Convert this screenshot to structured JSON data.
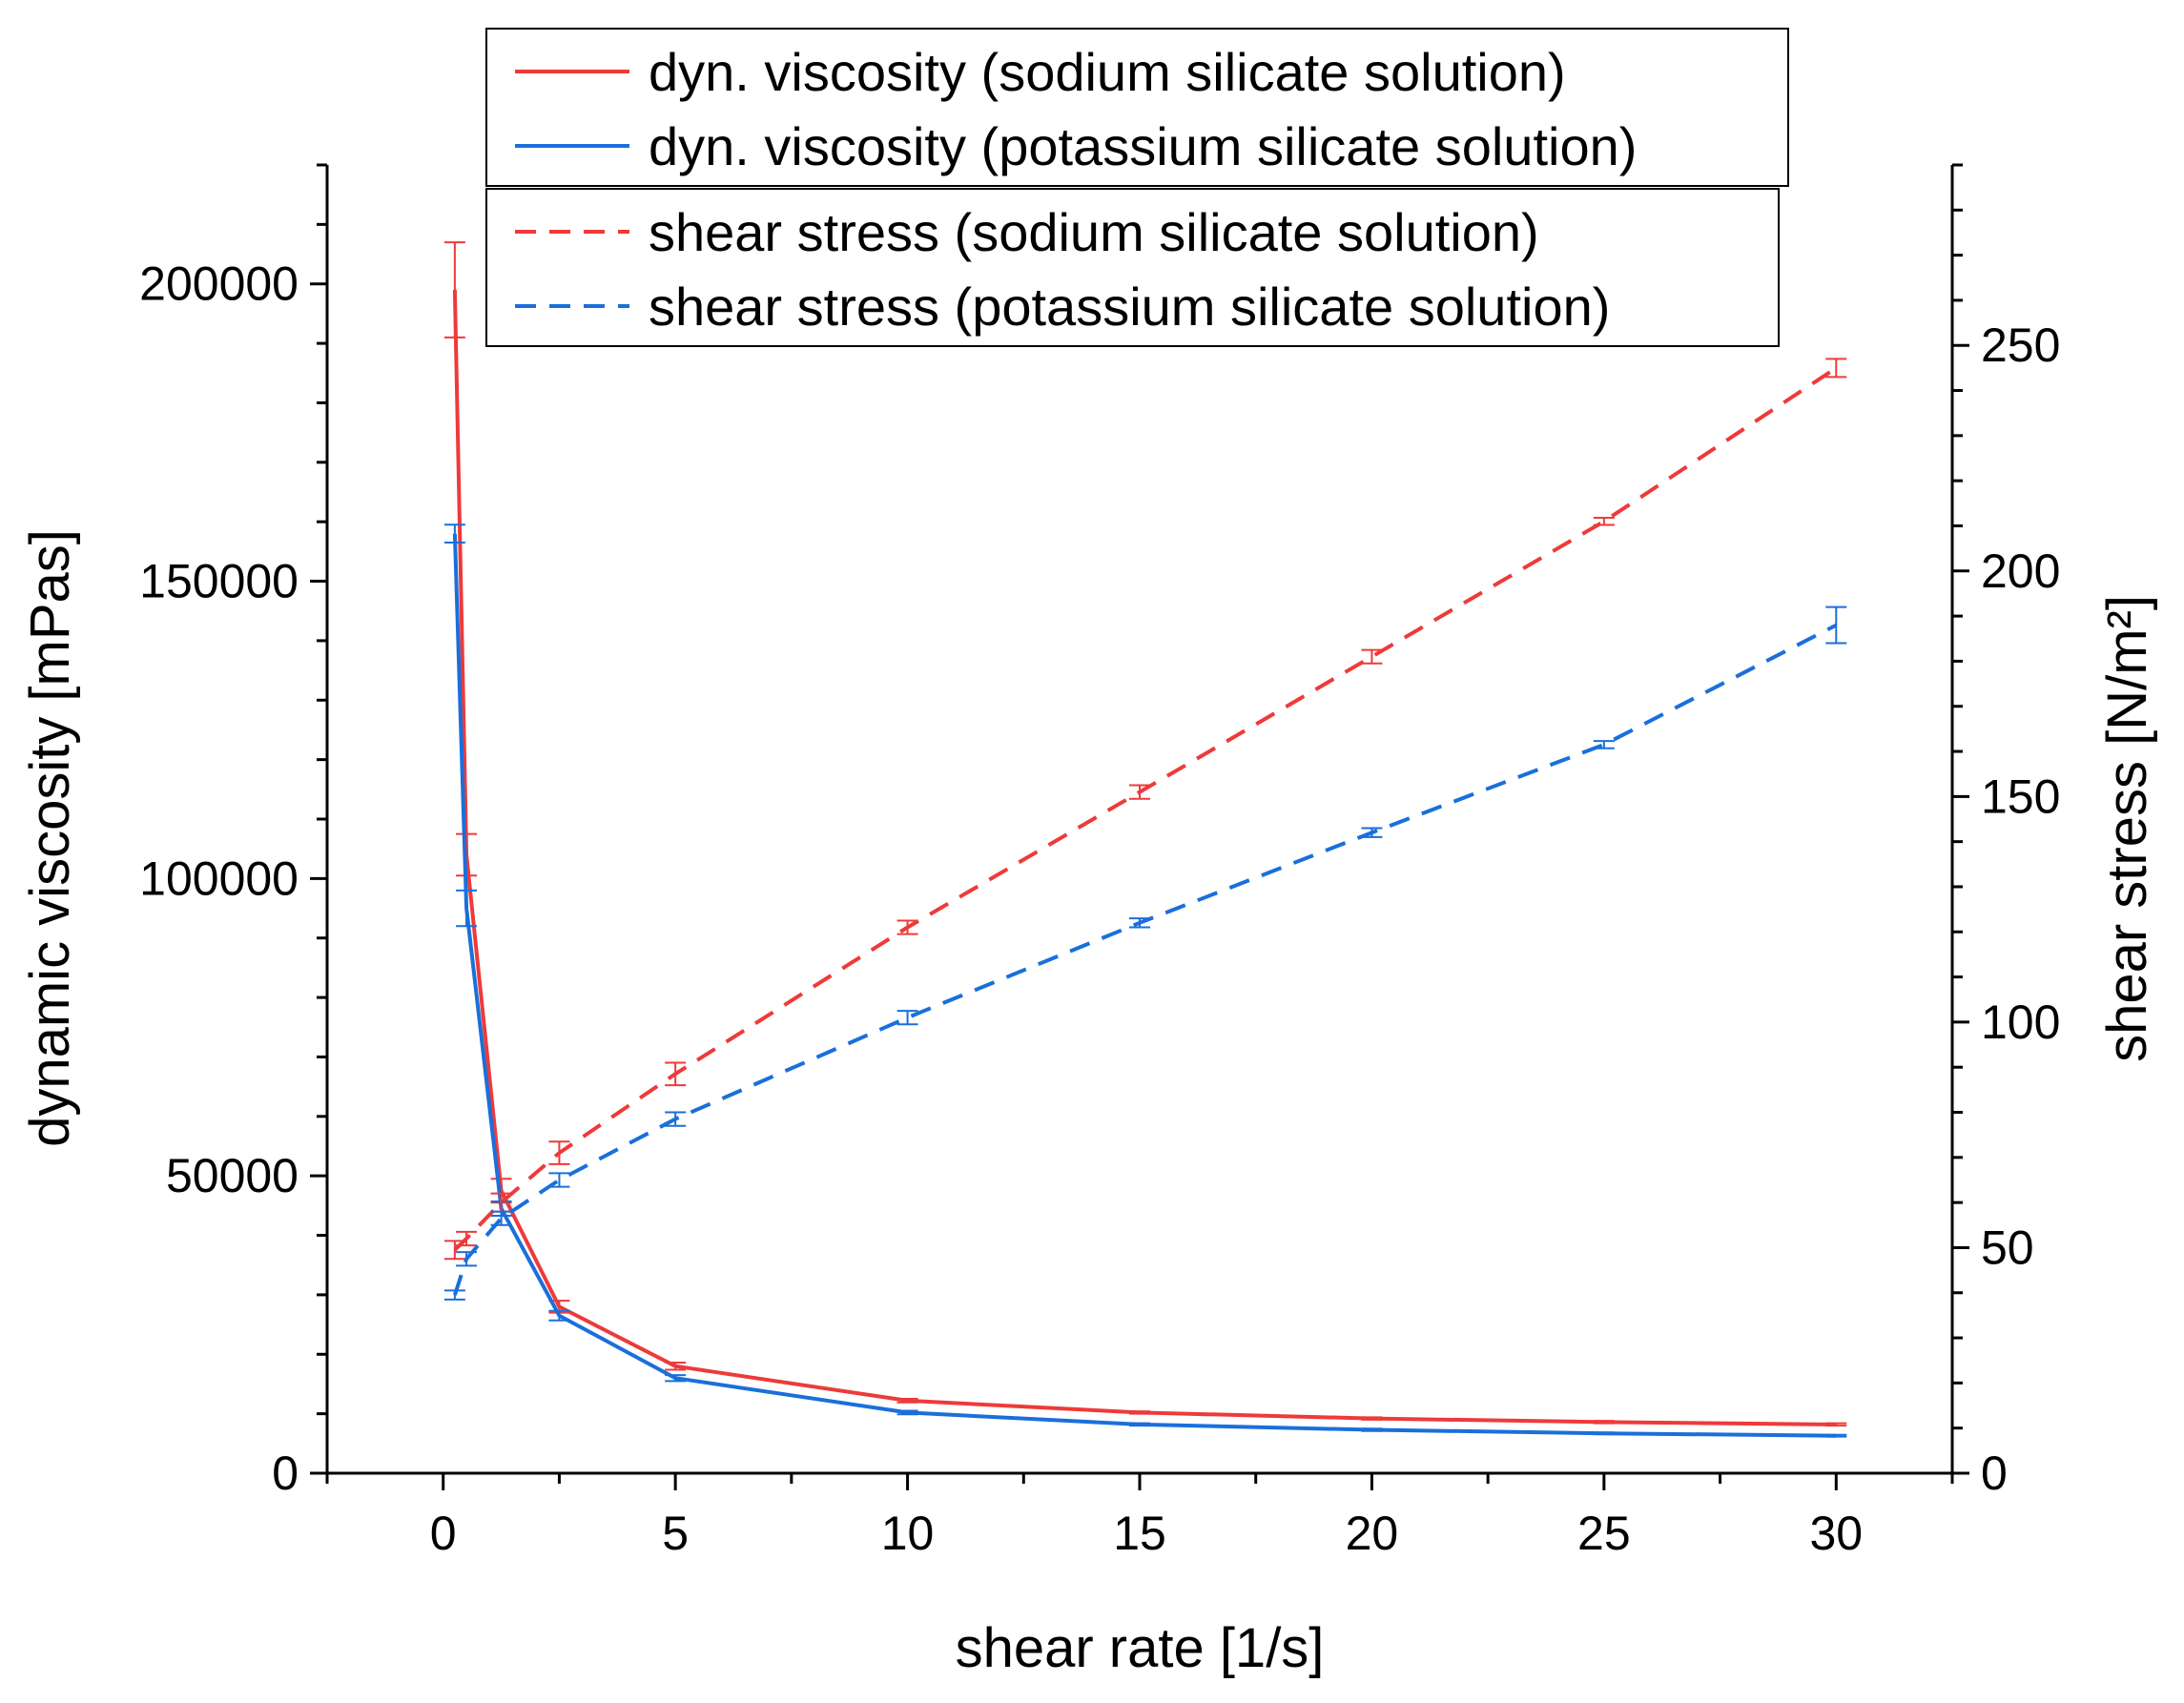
{
  "chart_data": {
    "type": "line",
    "xlabel": "shear rate [1/s]",
    "ylabel_left": "dynamic viscosity [mPas]",
    "ylabel_right": "shear stress [N/m²]",
    "xlim": [
      -2.5,
      32.5
    ],
    "ylim_left": [
      0,
      220000
    ],
    "ylim_right": [
      0,
      290
    ],
    "x_ticks": [
      0,
      5,
      10,
      15,
      20,
      25,
      30
    ],
    "y_left_ticks": [
      0,
      50000,
      100000,
      150000,
      200000
    ],
    "y_right_ticks": [
      0,
      50,
      100,
      150,
      200,
      250
    ],
    "grid": false,
    "legend_position": "top",
    "series": [
      {
        "name": "dyn. viscosity (sodium silicate solution)",
        "axis": "left",
        "style": "solid",
        "color": "#ee3a3a",
        "x": [
          0.25,
          0.5,
          1.25,
          2.5,
          5,
          10,
          15,
          20,
          25,
          30
        ],
        "y": [
          199000,
          104000,
          47500,
          28000,
          18000,
          12200,
          10200,
          9200,
          8600,
          8200
        ],
        "err": [
          8000,
          3500,
          2000,
          1000,
          600,
          300,
          200,
          200,
          200,
          200
        ]
      },
      {
        "name": "dyn. viscosity (potassium silicate solution)",
        "axis": "left",
        "style": "solid",
        "color": "#1a6fdb",
        "x": [
          0.25,
          0.5,
          1.25,
          2.5,
          5,
          10,
          15,
          20,
          25,
          30
        ],
        "y": [
          158000,
          95000,
          44500,
          26500,
          16000,
          10200,
          8200,
          7300,
          6700,
          6300
        ],
        "err": [
          1500,
          3000,
          1200,
          800,
          500,
          300,
          200,
          200,
          150,
          150
        ]
      },
      {
        "name": "shear stress (sodium silicate solution)",
        "axis": "right",
        "style": "dashed",
        "color": "#ee3a3a",
        "x": [
          0.25,
          0.5,
          1.25,
          2.5,
          5,
          10,
          15,
          20,
          25,
          30
        ],
        "y": [
          49.5,
          52,
          60,
          71,
          88.5,
          121,
          151,
          181,
          211,
          245
        ],
        "err": [
          2,
          1.5,
          2,
          2.5,
          2.5,
          1.5,
          1.5,
          1.5,
          0.8,
          2
        ]
      },
      {
        "name": "shear stress (potassium silicate solution)",
        "axis": "right",
        "style": "dashed",
        "color": "#1a6fdb",
        "x": [
          0.25,
          0.5,
          1.25,
          2.5,
          5,
          10,
          15,
          20,
          25,
          30
        ],
        "y": [
          39.5,
          47.5,
          56.5,
          65,
          78.5,
          101,
          122,
          142,
          161.5,
          188
        ],
        "err": [
          1,
          1.5,
          1.5,
          1.5,
          1.5,
          1.5,
          1,
          1,
          0.8,
          4
        ]
      }
    ]
  }
}
